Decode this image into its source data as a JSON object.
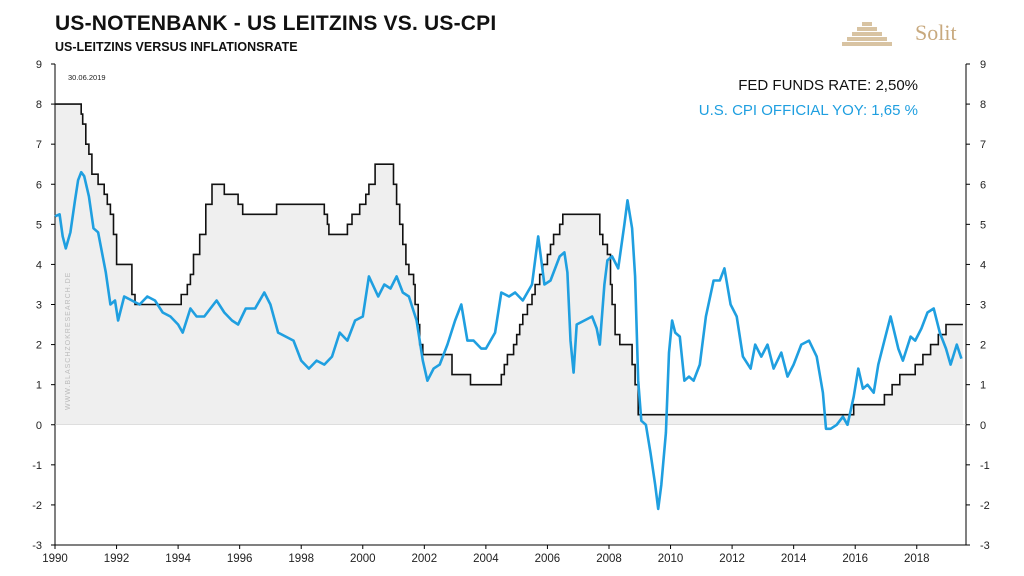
{
  "header": {
    "title": "US-NOTENBANK - US LEITZINS VS. US-CPI",
    "subtitle": "US-LEITZINS VERSUS INFLATIONSRATE"
  },
  "logo": {
    "text": "Solit",
    "icon": "pyramid-steps-icon",
    "color": "#c8a97e"
  },
  "watermark": "WWW.BLASCHZOKRESEARCH.DE",
  "date_label": "30.06.2019",
  "legend": {
    "fed": "FED FUNDS RATE: 2,50%",
    "cpi": "U.S. CPI OFFICIAL YOY: 1,65 %"
  },
  "colors": {
    "fed": "#111111",
    "cpi": "#1f9fe0",
    "fill": "#efefef"
  },
  "chart_data": {
    "type": "line",
    "title": "US-NOTENBANK - US LEITZINS VS. US-CPI",
    "subtitle": "US-LEITZINS VERSUS INFLATIONSRATE",
    "xlim": [
      1990,
      2019.6
    ],
    "ylim": [
      -3,
      9
    ],
    "x_ticks": [
      "1990",
      "1992",
      "1994",
      "1996",
      "1998",
      "2000",
      "2002",
      "2004",
      "2006",
      "2008",
      "2010",
      "2012",
      "2014",
      "2016",
      "2018"
    ],
    "y_ticks": [
      "9",
      "8",
      "7",
      "6",
      "5",
      "4",
      "3",
      "2",
      "1",
      "0",
      "-1",
      "-2",
      "-3"
    ],
    "grid": false,
    "dual_y_axis": true,
    "legend_position": "top-right",
    "series": [
      {
        "name": "FED FUNDS RATE",
        "style": "step",
        "filled": true,
        "points": [
          [
            1990.0,
            8.0
          ],
          [
            1990.8,
            8.0
          ],
          [
            1990.85,
            7.75
          ],
          [
            1990.9,
            7.5
          ],
          [
            1991.0,
            7.0
          ],
          [
            1991.1,
            6.75
          ],
          [
            1991.2,
            6.25
          ],
          [
            1991.4,
            6.0
          ],
          [
            1991.6,
            5.75
          ],
          [
            1991.7,
            5.5
          ],
          [
            1991.8,
            5.25
          ],
          [
            1991.9,
            4.75
          ],
          [
            1992.0,
            4.0
          ],
          [
            1992.5,
            3.25
          ],
          [
            1992.6,
            3.0
          ],
          [
            1994.1,
            3.25
          ],
          [
            1994.3,
            3.5
          ],
          [
            1994.4,
            3.75
          ],
          [
            1994.5,
            4.25
          ],
          [
            1994.7,
            4.75
          ],
          [
            1994.9,
            5.5
          ],
          [
            1995.1,
            6.0
          ],
          [
            1995.5,
            5.75
          ],
          [
            1995.95,
            5.5
          ],
          [
            1996.1,
            5.25
          ],
          [
            1997.2,
            5.5
          ],
          [
            1998.75,
            5.25
          ],
          [
            1998.85,
            5.0
          ],
          [
            1998.9,
            4.75
          ],
          [
            1999.5,
            5.0
          ],
          [
            1999.65,
            5.25
          ],
          [
            1999.9,
            5.5
          ],
          [
            2000.1,
            5.75
          ],
          [
            2000.2,
            6.0
          ],
          [
            2000.4,
            6.5
          ],
          [
            2001.0,
            6.0
          ],
          [
            2001.1,
            5.5
          ],
          [
            2001.2,
            5.0
          ],
          [
            2001.3,
            4.5
          ],
          [
            2001.4,
            4.0
          ],
          [
            2001.5,
            3.75
          ],
          [
            2001.65,
            3.5
          ],
          [
            2001.7,
            3.0
          ],
          [
            2001.8,
            2.5
          ],
          [
            2001.85,
            2.0
          ],
          [
            2001.95,
            1.75
          ],
          [
            2002.9,
            1.25
          ],
          [
            2003.5,
            1.0
          ],
          [
            2004.5,
            1.25
          ],
          [
            2004.6,
            1.5
          ],
          [
            2004.7,
            1.75
          ],
          [
            2004.9,
            2.0
          ],
          [
            2005.0,
            2.25
          ],
          [
            2005.1,
            2.5
          ],
          [
            2005.2,
            2.75
          ],
          [
            2005.35,
            3.0
          ],
          [
            2005.5,
            3.25
          ],
          [
            2005.6,
            3.5
          ],
          [
            2005.75,
            3.75
          ],
          [
            2005.85,
            4.0
          ],
          [
            2006.0,
            4.25
          ],
          [
            2006.1,
            4.5
          ],
          [
            2006.2,
            4.75
          ],
          [
            2006.4,
            5.0
          ],
          [
            2006.5,
            5.25
          ],
          [
            2007.7,
            4.75
          ],
          [
            2007.8,
            4.5
          ],
          [
            2007.95,
            4.25
          ],
          [
            2008.05,
            3.5
          ],
          [
            2008.1,
            3.0
          ],
          [
            2008.2,
            2.25
          ],
          [
            2008.35,
            2.0
          ],
          [
            2008.75,
            1.5
          ],
          [
            2008.85,
            1.0
          ],
          [
            2008.95,
            0.25
          ],
          [
            2015.95,
            0.5
          ],
          [
            2016.95,
            0.75
          ],
          [
            2017.2,
            1.0
          ],
          [
            2017.45,
            1.25
          ],
          [
            2017.95,
            1.5
          ],
          [
            2018.2,
            1.75
          ],
          [
            2018.45,
            2.0
          ],
          [
            2018.7,
            2.25
          ],
          [
            2018.95,
            2.5
          ],
          [
            2019.5,
            2.5
          ]
        ]
      },
      {
        "name": "U.S. CPI OFFICIAL YOY",
        "style": "line",
        "points": [
          [
            1990.0,
            5.2
          ],
          [
            1990.15,
            5.25
          ],
          [
            1990.25,
            4.7
          ],
          [
            1990.35,
            4.4
          ],
          [
            1990.5,
            4.8
          ],
          [
            1990.65,
            5.6
          ],
          [
            1990.75,
            6.1
          ],
          [
            1990.85,
            6.3
          ],
          [
            1990.95,
            6.2
          ],
          [
            1991.1,
            5.7
          ],
          [
            1991.25,
            4.9
          ],
          [
            1991.4,
            4.8
          ],
          [
            1991.5,
            4.4
          ],
          [
            1991.65,
            3.8
          ],
          [
            1991.8,
            3.0
          ],
          [
            1991.95,
            3.1
          ],
          [
            1992.05,
            2.6
          ],
          [
            1992.25,
            3.2
          ],
          [
            1992.5,
            3.1
          ],
          [
            1992.75,
            3.0
          ],
          [
            1993.0,
            3.2
          ],
          [
            1993.25,
            3.1
          ],
          [
            1993.5,
            2.8
          ],
          [
            1993.75,
            2.7
          ],
          [
            1994.0,
            2.5
          ],
          [
            1994.15,
            2.3
          ],
          [
            1994.4,
            2.9
          ],
          [
            1994.6,
            2.7
          ],
          [
            1994.85,
            2.7
          ],
          [
            1995.05,
            2.9
          ],
          [
            1995.25,
            3.1
          ],
          [
            1995.5,
            2.8
          ],
          [
            1995.75,
            2.6
          ],
          [
            1995.95,
            2.5
          ],
          [
            1996.2,
            2.9
          ],
          [
            1996.5,
            2.9
          ],
          [
            1996.8,
            3.3
          ],
          [
            1997.0,
            3.0
          ],
          [
            1997.25,
            2.3
          ],
          [
            1997.5,
            2.2
          ],
          [
            1997.75,
            2.1
          ],
          [
            1998.0,
            1.6
          ],
          [
            1998.25,
            1.4
          ],
          [
            1998.5,
            1.6
          ],
          [
            1998.75,
            1.5
          ],
          [
            1999.0,
            1.7
          ],
          [
            1999.25,
            2.3
          ],
          [
            1999.5,
            2.1
          ],
          [
            1999.75,
            2.6
          ],
          [
            2000.0,
            2.7
          ],
          [
            2000.2,
            3.7
          ],
          [
            2000.5,
            3.2
          ],
          [
            2000.7,
            3.5
          ],
          [
            2000.9,
            3.4
          ],
          [
            2001.1,
            3.7
          ],
          [
            2001.3,
            3.3
          ],
          [
            2001.5,
            3.2
          ],
          [
            2001.75,
            2.6
          ],
          [
            2001.95,
            1.6
          ],
          [
            2002.1,
            1.1
          ],
          [
            2002.3,
            1.4
          ],
          [
            2002.5,
            1.5
          ],
          [
            2002.75,
            2.0
          ],
          [
            2003.0,
            2.6
          ],
          [
            2003.2,
            3.0
          ],
          [
            2003.4,
            2.1
          ],
          [
            2003.6,
            2.1
          ],
          [
            2003.85,
            1.9
          ],
          [
            2004.0,
            1.9
          ],
          [
            2004.3,
            2.3
          ],
          [
            2004.5,
            3.3
          ],
          [
            2004.75,
            3.2
          ],
          [
            2004.95,
            3.3
          ],
          [
            2005.2,
            3.1
          ],
          [
            2005.5,
            3.5
          ],
          [
            2005.7,
            4.7
          ],
          [
            2005.9,
            3.5
          ],
          [
            2006.1,
            3.6
          ],
          [
            2006.4,
            4.2
          ],
          [
            2006.55,
            4.3
          ],
          [
            2006.65,
            3.8
          ],
          [
            2006.75,
            2.1
          ],
          [
            2006.85,
            1.3
          ],
          [
            2006.95,
            2.5
          ],
          [
            2007.2,
            2.6
          ],
          [
            2007.45,
            2.7
          ],
          [
            2007.6,
            2.4
          ],
          [
            2007.7,
            2.0
          ],
          [
            2007.85,
            3.5
          ],
          [
            2007.95,
            4.1
          ],
          [
            2008.1,
            4.2
          ],
          [
            2008.3,
            3.9
          ],
          [
            2008.5,
            5.0
          ],
          [
            2008.6,
            5.6
          ],
          [
            2008.75,
            4.9
          ],
          [
            2008.85,
            3.7
          ],
          [
            2008.95,
            1.1
          ],
          [
            2009.05,
            0.1
          ],
          [
            2009.2,
            0.0
          ],
          [
            2009.35,
            -0.7
          ],
          [
            2009.5,
            -1.5
          ],
          [
            2009.6,
            -2.1
          ],
          [
            2009.7,
            -1.5
          ],
          [
            2009.85,
            -0.2
          ],
          [
            2009.95,
            1.8
          ],
          [
            2010.05,
            2.6
          ],
          [
            2010.15,
            2.3
          ],
          [
            2010.3,
            2.2
          ],
          [
            2010.45,
            1.1
          ],
          [
            2010.6,
            1.2
          ],
          [
            2010.75,
            1.1
          ],
          [
            2010.95,
            1.5
          ],
          [
            2011.15,
            2.7
          ],
          [
            2011.4,
            3.6
          ],
          [
            2011.6,
            3.6
          ],
          [
            2011.75,
            3.9
          ],
          [
            2011.95,
            3.0
          ],
          [
            2012.15,
            2.7
          ],
          [
            2012.35,
            1.7
          ],
          [
            2012.6,
            1.4
          ],
          [
            2012.75,
            2.0
          ],
          [
            2012.95,
            1.7
          ],
          [
            2013.15,
            2.0
          ],
          [
            2013.35,
            1.4
          ],
          [
            2013.6,
            1.8
          ],
          [
            2013.8,
            1.2
          ],
          [
            2014.0,
            1.5
          ],
          [
            2014.25,
            2.0
          ],
          [
            2014.5,
            2.1
          ],
          [
            2014.75,
            1.7
          ],
          [
            2014.95,
            0.8
          ],
          [
            2015.05,
            -0.1
          ],
          [
            2015.2,
            -0.1
          ],
          [
            2015.4,
            0.0
          ],
          [
            2015.6,
            0.2
          ],
          [
            2015.75,
            0.0
          ],
          [
            2015.95,
            0.7
          ],
          [
            2016.1,
            1.4
          ],
          [
            2016.25,
            0.9
          ],
          [
            2016.4,
            1.0
          ],
          [
            2016.6,
            0.8
          ],
          [
            2016.75,
            1.5
          ],
          [
            2016.95,
            2.1
          ],
          [
            2017.15,
            2.7
          ],
          [
            2017.4,
            1.9
          ],
          [
            2017.55,
            1.6
          ],
          [
            2017.8,
            2.2
          ],
          [
            2017.95,
            2.1
          ],
          [
            2018.15,
            2.4
          ],
          [
            2018.35,
            2.8
          ],
          [
            2018.55,
            2.9
          ],
          [
            2018.75,
            2.3
          ],
          [
            2018.95,
            1.9
          ],
          [
            2019.1,
            1.5
          ],
          [
            2019.3,
            2.0
          ],
          [
            2019.45,
            1.65
          ]
        ]
      }
    ]
  }
}
